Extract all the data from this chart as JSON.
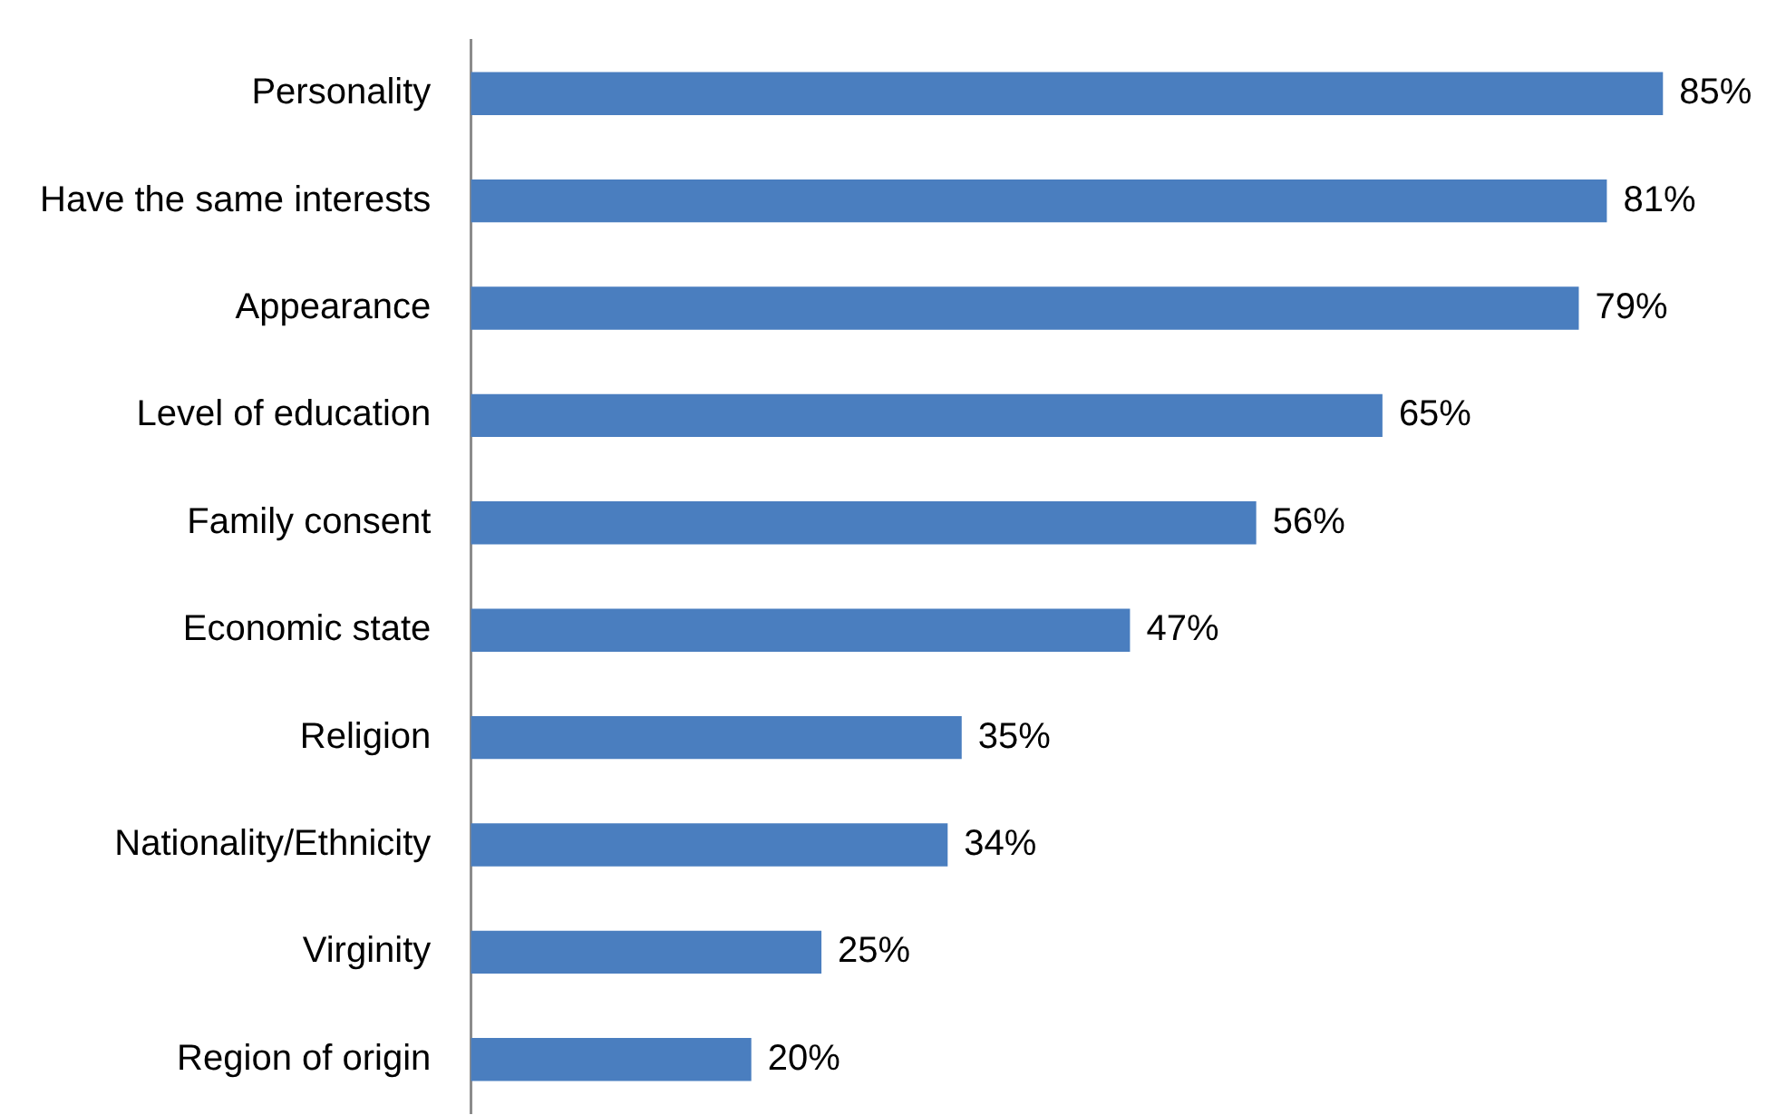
{
  "chart_data": {
    "type": "bar",
    "orientation": "horizontal",
    "categories": [
      "Personality",
      "Have the same interests",
      "Appearance",
      "Level of education",
      "Family consent",
      "Economic state",
      "Religion",
      "Nationality/Ethnicity",
      "Virginity",
      "Region of origin"
    ],
    "values": [
      85,
      81,
      79,
      65,
      56,
      47,
      35,
      34,
      25,
      20
    ],
    "value_labels": [
      "85%",
      "81%",
      "79%",
      "65%",
      "56%",
      "47%",
      "35%",
      "34%",
      "25%",
      "20%"
    ],
    "color": "#4a7ebf",
    "legend": false,
    "tick_labels": "y"
  }
}
